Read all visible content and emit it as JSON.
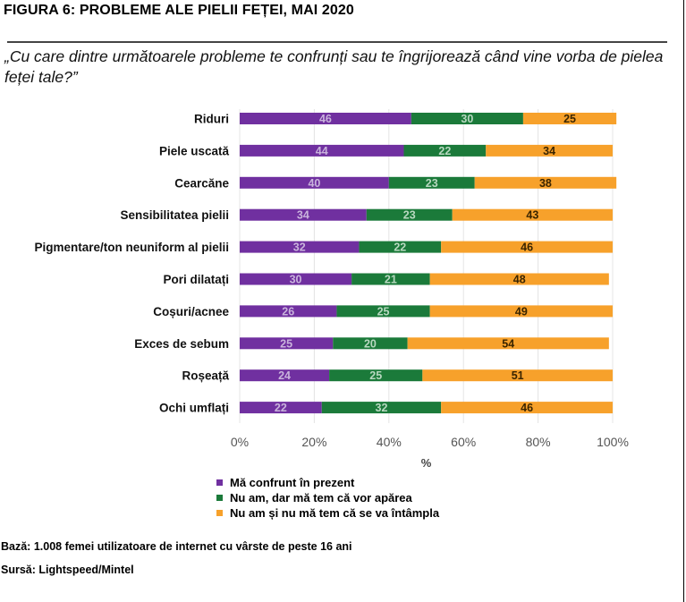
{
  "figure_title": "FIGURA 6: PROBLEME ALE PIELII FEȚEI, MAI 2020",
  "question": "„Cu care dintre următoarele probleme te confrunți sau te îngrijorează când vine vorba de pielea feței tale?”",
  "chart_data": {
    "type": "bar",
    "orientation": "horizontal",
    "stacked": true,
    "categories": [
      "Riduri",
      "Piele uscată",
      "Cearcăne",
      "Sensibilitatea pielii",
      "Pigmentare/ton neuniform al pielii",
      "Pori dilatați",
      "Coșuri/acnee",
      "Exces de sebum",
      "Roșeață",
      "Ochi umflați"
    ],
    "series": [
      {
        "name": "Mă confrunt în prezent",
        "color": "#7030A0",
        "label_color": "#c9b3dc",
        "values": [
          46,
          44,
          40,
          34,
          32,
          30,
          26,
          25,
          24,
          22
        ]
      },
      {
        "name": "Nu am, dar mă tem că vor apărea",
        "color": "#1B7A3A",
        "label_color": "#b8d8c0",
        "values": [
          30,
          22,
          23,
          23,
          22,
          21,
          25,
          20,
          25,
          32
        ]
      },
      {
        "name": "Nu am și nu mă tem că se va întâmpla",
        "color": "#F7A12B",
        "label_color": "#3a2500",
        "values": [
          25,
          34,
          38,
          43,
          46,
          48,
          49,
          54,
          51,
          46
        ]
      }
    ],
    "xlim": [
      0,
      100
    ],
    "xticks": [
      0,
      20,
      40,
      60,
      80,
      100
    ],
    "xtick_labels": [
      "0%",
      "20%",
      "40%",
      "60%",
      "80%",
      "100%"
    ],
    "xlabel": "%",
    "legend_position": "bottom"
  },
  "notes": {
    "base": "Bază: 1.008 femei utilizatoare de internet cu vârste de peste 16 ani",
    "source": "Sursă: Lightspeed/Mintel"
  }
}
